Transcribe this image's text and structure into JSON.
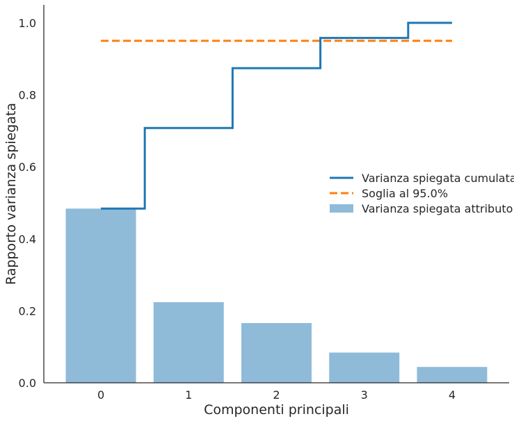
{
  "chart_data": {
    "type": "bar",
    "title": "",
    "xlabel": "Componenti principali",
    "ylabel": "Rapporto varianza spiegata",
    "categories": [
      "0",
      "1",
      "2",
      "3",
      "4"
    ],
    "x": [
      0,
      1,
      2,
      3,
      4
    ],
    "xlim": [
      -0.65,
      4.65
    ],
    "ylim": [
      0.0,
      1.05
    ],
    "yticks": [
      "0.0",
      "0.2",
      "0.4",
      "0.6",
      "0.8",
      "1.0"
    ],
    "grid": false,
    "legend_position": "center-right",
    "series": [
      {
        "name": "Varianza spiegata attributo",
        "kind": "bar",
        "values": [
          0.484,
          0.224,
          0.166,
          0.084,
          0.044
        ],
        "color": "#8fbbd9"
      },
      {
        "name": "Varianza spiegata cumulata",
        "kind": "step",
        "values": [
          0.484,
          0.708,
          0.874,
          0.958,
          1.0
        ],
        "color": "#1f77b4"
      },
      {
        "name": "Soglia al 95.0%",
        "kind": "threshold",
        "values": [
          0.95,
          0.95,
          0.95,
          0.95,
          0.95
        ],
        "color": "#ff7f0e"
      }
    ]
  }
}
